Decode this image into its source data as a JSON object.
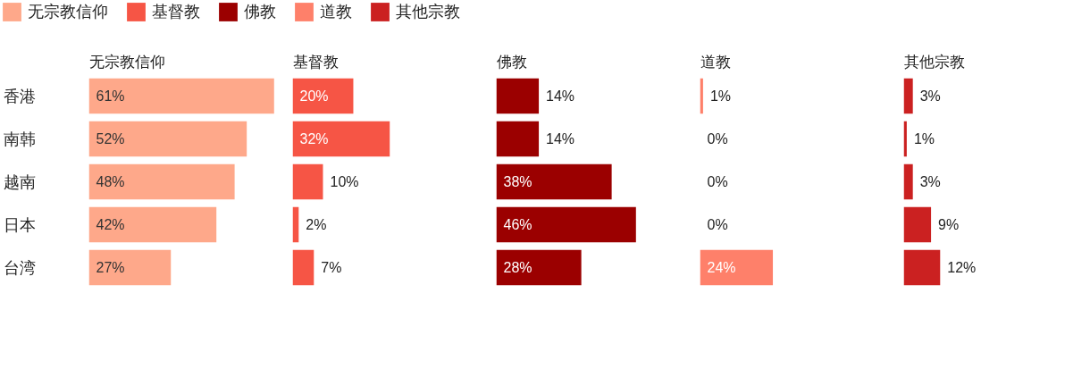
{
  "chart_data": [
    {
      "type": "bar",
      "orientation": "horizontal",
      "title": "无宗教信仰",
      "categories": [
        "香港",
        "南韩",
        "越南",
        "日本",
        "台湾"
      ],
      "tick_labels": "y",
      "legend": "top",
      "series": [
        {
          "name": "无宗教信仰",
          "color": "#fea88a",
          "values": [
            61,
            52,
            48,
            42,
            27
          ],
          "value_labels": [
            "61%",
            "52%",
            "48%",
            "42%",
            "27%"
          ]
        }
      ]
    },
    {
      "type": "bar",
      "orientation": "horizontal",
      "title": "基督教",
      "categories": [
        null,
        null,
        null,
        null,
        null
      ],
      "tick_labels": false,
      "legend": "top",
      "series": [
        {
          "name": "基督教",
          "color": "#f65545",
          "values": [
            20,
            32,
            10,
            2,
            7
          ],
          "value_labels": [
            "20%",
            "32%",
            "10%",
            "2%",
            "7%"
          ]
        }
      ]
    },
    {
      "type": "bar",
      "orientation": "horizontal",
      "title": "佛教",
      "categories": [
        null,
        null,
        null,
        null,
        null
      ],
      "tick_labels": false,
      "legend": "top",
      "series": [
        {
          "name": "佛教",
          "color": "#9b0000",
          "values": [
            14,
            14,
            38,
            46,
            28
          ],
          "value_labels": [
            "14%",
            "14%",
            "38%",
            "46%",
            "28%"
          ]
        }
      ]
    },
    {
      "type": "bar",
      "orientation": "horizontal",
      "title": "道教",
      "categories": [
        null,
        null,
        null,
        null,
        null
      ],
      "tick_labels": false,
      "legend": "top",
      "series": [
        {
          "name": "道教",
          "color": "#fe806a",
          "values": [
            1,
            0,
            0,
            0,
            24
          ],
          "value_labels": [
            "1%",
            "0%",
            "0%",
            "0%",
            "24%"
          ]
        }
      ]
    },
    {
      "type": "bar",
      "orientation": "horizontal",
      "title": "其他宗教",
      "categories": [
        null,
        null,
        null,
        null,
        null
      ],
      "tick_labels": false,
      "legend": "top",
      "series": [
        {
          "name": "其他宗教",
          "color": "#cb2121",
          "values": [
            3,
            1,
            3,
            9,
            12
          ],
          "value_labels": [
            "3%",
            "1%",
            "3%",
            "9%",
            "12%"
          ]
        }
      ]
    }
  ]
}
